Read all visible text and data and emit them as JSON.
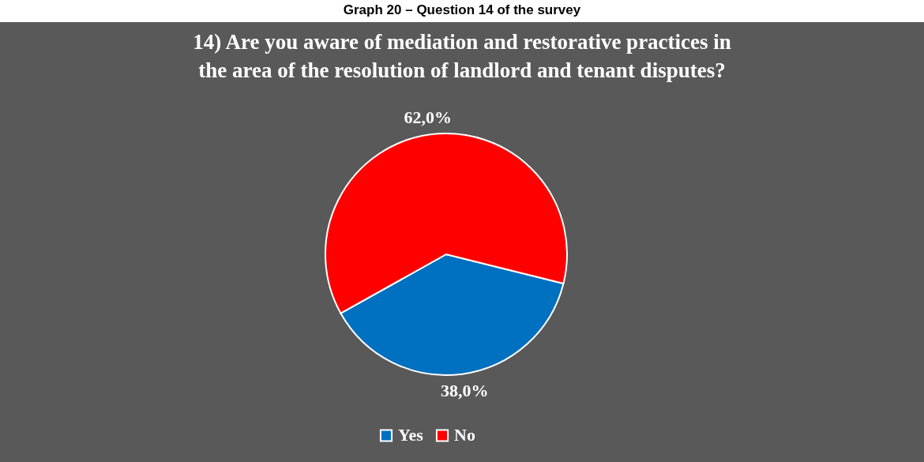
{
  "chart_data": {
    "type": "pie",
    "title": "14) Are you aware of mediation and restorative practices in the area of the resolution of landlord and tenant disputes?",
    "annotations": [
      "Graph 20 – Question 14 of the survey"
    ],
    "categories": [
      "Yes",
      "No"
    ],
    "values": [
      38.0,
      62.0
    ],
    "colors": [
      "#0070c0",
      "#ff0000"
    ],
    "value_labels": [
      "38,0%",
      "62,0%"
    ],
    "legend": "bottom"
  }
}
